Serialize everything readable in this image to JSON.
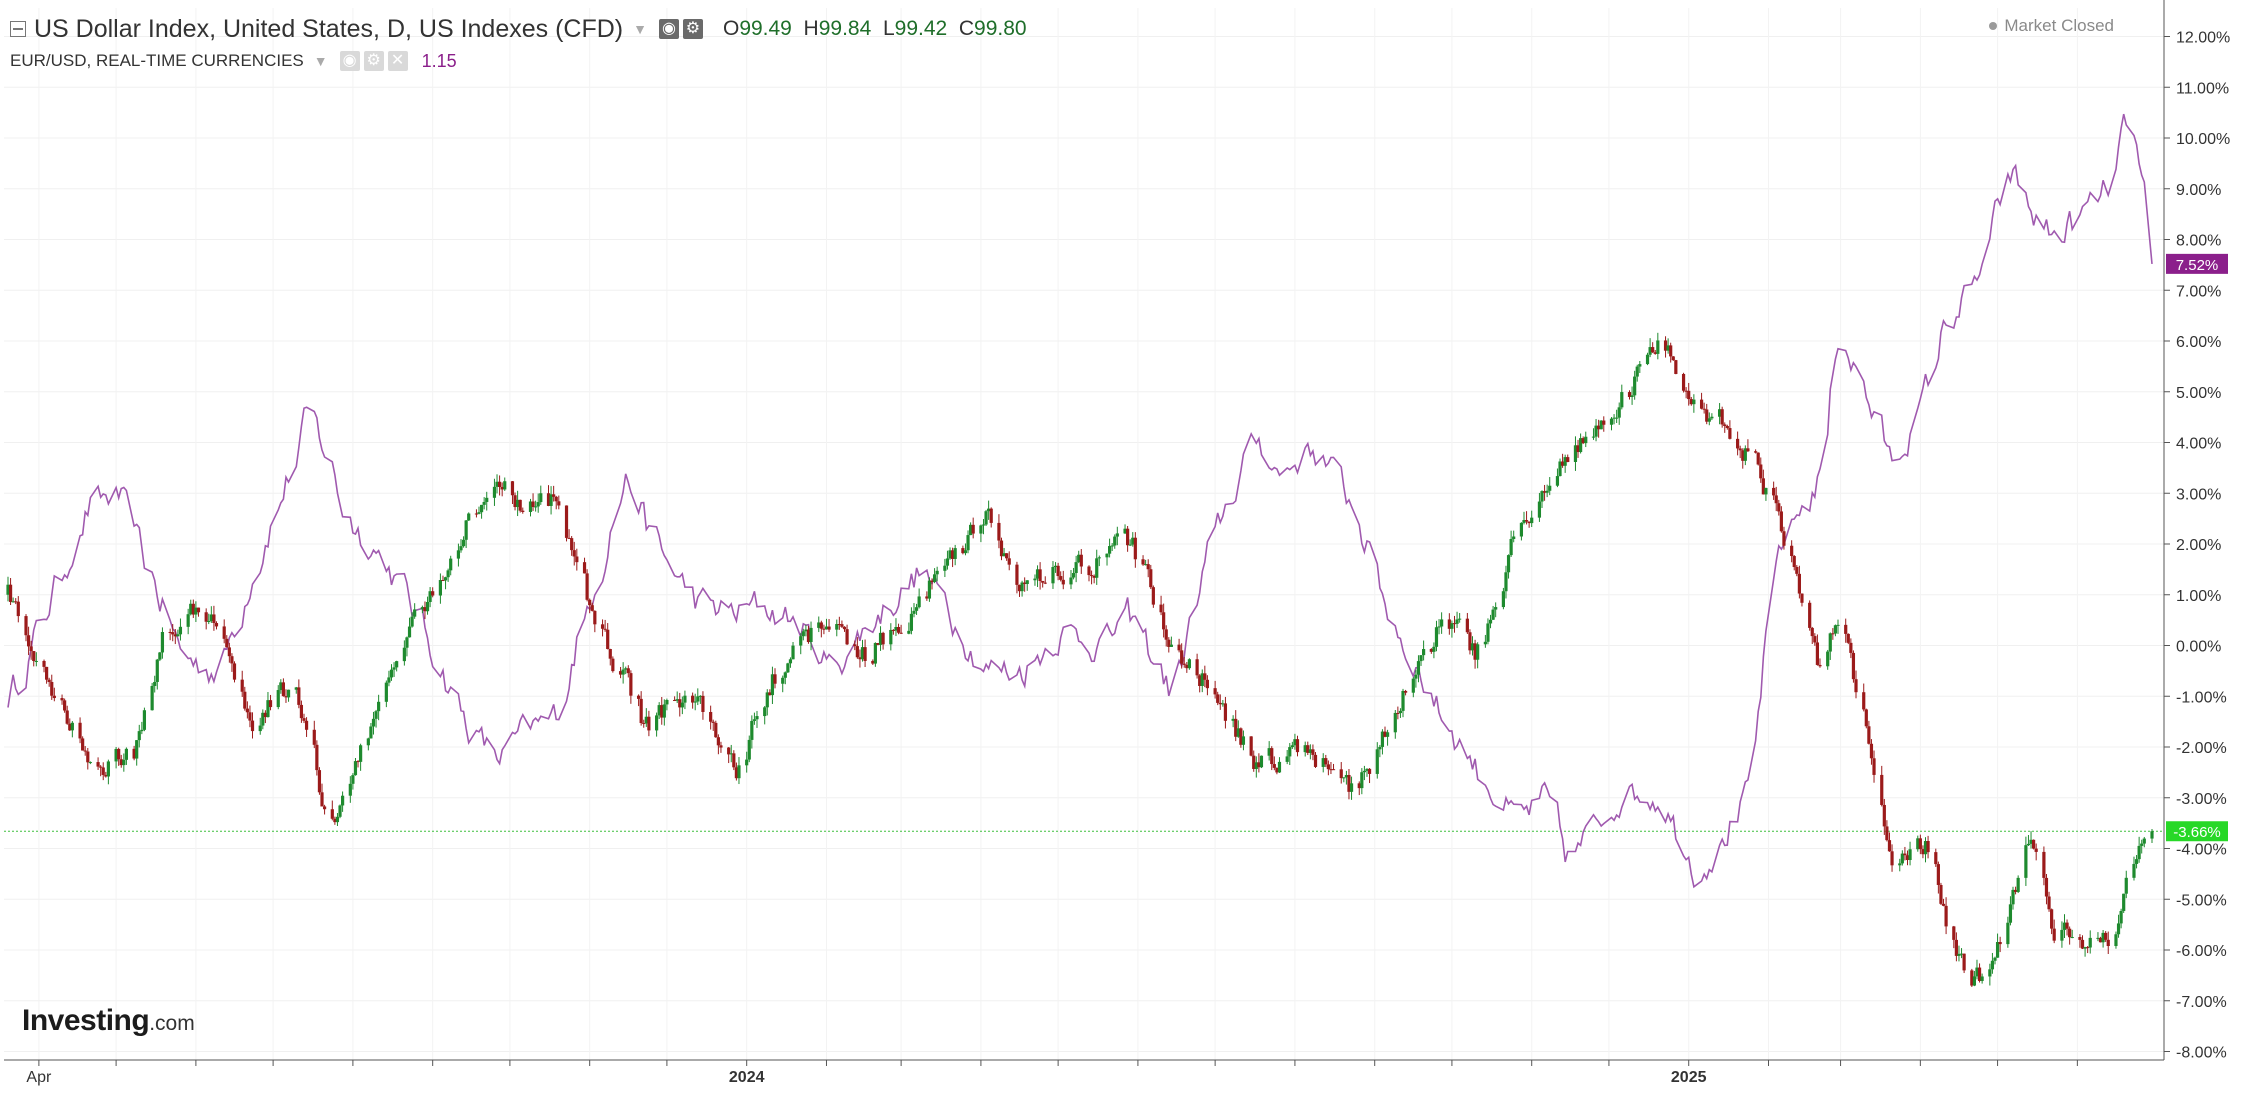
{
  "header": {
    "main_title": "US Dollar Index, United States, D, US Indexes (CFD)",
    "ohlc": {
      "o_key": "O",
      "o_val": "99.49",
      "h_key": "H",
      "h_val": "99.84",
      "l_key": "L",
      "l_val": "99.42",
      "c_key": "C",
      "c_val": "99.80"
    },
    "overlay_title": "EUR/USD, REAL-TIME CURRENCIES",
    "overlay_value": "1.15",
    "market_status": "Market Closed",
    "icons": [
      "collapse-icon",
      "eye-icon",
      "gear-icon",
      "close-icon"
    ]
  },
  "logo": {
    "brand": "Investing",
    "suffix": ".com"
  },
  "colors": {
    "up_candle": "#1e8a2e",
    "down_candle": "#9b1a1a",
    "eurusd_line": "#a05aaf",
    "eurusd_badge": "#8b1f8b",
    "dxy_badge": "#27d827",
    "current_line": "#3fbf3f"
  },
  "chart_data": {
    "type": "line",
    "title": "",
    "xlabel": "",
    "ylabel": "",
    "x_tick_labels": [
      "Apr",
      "2024",
      "2025"
    ],
    "y_tick_labels": [
      "12.00%",
      "11.00%",
      "10.00%",
      "9.00%",
      "8.00%",
      "7.00%",
      "6.00%",
      "5.00%",
      "4.00%",
      "3.00%",
      "2.00%",
      "1.00%",
      "0.00%",
      "-1.00%",
      "-2.00%",
      "-3.00%",
      "-4.00%",
      "-5.00%",
      "-6.00%",
      "-7.00%",
      "-8.00%"
    ],
    "ylim": [
      -8,
      12.5
    ],
    "y_unit": "%",
    "grid": true,
    "x_start": "2023-03-20",
    "x_end": "2025-06-30",
    "series": [
      {
        "name": "US Dollar Index",
        "style": "candlestick",
        "last_value_label": "-3.66%",
        "x": [
          "2023-03-20",
          "2023-04-05",
          "2023-04-25",
          "2023-05-08",
          "2023-05-20",
          "2023-06-05",
          "2023-06-22",
          "2023-07-07",
          "2023-07-14",
          "2023-07-20",
          "2023-07-28",
          "2023-08-10",
          "2023-08-20",
          "2023-08-30",
          "2023-09-12",
          "2023-09-25",
          "2023-10-03",
          "2023-10-18",
          "2023-10-28",
          "2023-11-06",
          "2023-11-14",
          "2023-11-22",
          "2023-12-01",
          "2023-12-12",
          "2023-12-27",
          "2024-01-04",
          "2024-01-18",
          "2024-02-02",
          "2024-02-14",
          "2024-03-08",
          "2024-03-20",
          "2024-04-02",
          "2024-04-16",
          "2024-05-01",
          "2024-05-16",
          "2024-05-28",
          "2024-06-13",
          "2024-06-28",
          "2024-07-16",
          "2024-07-25",
          "2024-08-06",
          "2024-08-22",
          "2024-09-06",
          "2024-09-27",
          "2024-10-10",
          "2024-10-25",
          "2024-11-06",
          "2024-11-14",
          "2024-11-25",
          "2024-12-06",
          "2024-12-20",
          "2025-01-03",
          "2025-01-13",
          "2025-01-23",
          "2025-02-03",
          "2025-02-20",
          "2025-02-27",
          "2025-03-05",
          "2025-03-20",
          "2025-04-02",
          "2025-04-10",
          "2025-04-21",
          "2025-05-05",
          "2025-05-12",
          "2025-05-22",
          "2025-06-02",
          "2025-06-12",
          "2025-06-20",
          "2025-06-30"
        ],
        "y": [
          1.0,
          -1.2,
          -2.4,
          -2.0,
          0.5,
          0.7,
          -1.5,
          -0.8,
          -1.5,
          -3.6,
          -3.1,
          -1.0,
          0.3,
          0.9,
          2.3,
          3.3,
          2.6,
          2.8,
          1.0,
          0.1,
          -0.7,
          -1.7,
          -1.1,
          -1.1,
          -2.6,
          -1.2,
          0.0,
          0.5,
          -0.3,
          1.0,
          1.8,
          2.6,
          1.0,
          1.5,
          1.7,
          2.1,
          0.0,
          -0.8,
          -2.4,
          -2.2,
          -2.0,
          -3.0,
          -1.5,
          0.5,
          -0.2,
          2.4,
          3.2,
          3.7,
          4.2,
          5.0,
          6.0,
          4.5,
          4.5,
          3.8,
          2.5,
          -0.5,
          0.8,
          -0.5,
          -4.6,
          -3.8,
          -5.5,
          -6.8,
          -5.2,
          -3.6,
          -5.6,
          -5.8,
          -5.9,
          -4.5,
          -3.66
        ]
      },
      {
        "name": "EUR/USD",
        "style": "line",
        "last_value_label": "7.52%",
        "x": [
          "2023-03-20",
          "2023-04-05",
          "2023-04-20",
          "2023-05-01",
          "2023-05-12",
          "2023-05-26",
          "2023-06-09",
          "2023-06-22",
          "2023-07-07",
          "2023-07-14",
          "2023-07-20",
          "2023-07-28",
          "2023-08-10",
          "2023-08-20",
          "2023-08-30",
          "2023-09-12",
          "2023-09-25",
          "2023-10-03",
          "2023-10-18",
          "2023-10-28",
          "2023-11-06",
          "2023-11-14",
          "2023-11-22",
          "2023-12-01",
          "2023-12-12",
          "2023-12-27",
          "2024-01-04",
          "2024-01-18",
          "2024-02-02",
          "2024-02-14",
          "2024-03-08",
          "2024-03-20",
          "2024-04-02",
          "2024-04-16",
          "2024-05-01",
          "2024-05-16",
          "2024-05-28",
          "2024-06-13",
          "2024-06-28",
          "2024-07-16",
          "2024-07-25",
          "2024-08-06",
          "2024-08-22",
          "2024-09-06",
          "2024-09-27",
          "2024-10-10",
          "2024-10-25",
          "2024-11-06",
          "2024-11-14",
          "2024-11-25",
          "2024-12-06",
          "2024-12-20",
          "2025-01-03",
          "2025-01-13",
          "2025-01-23",
          "2025-02-03",
          "2025-02-20",
          "2025-02-27",
          "2025-03-05",
          "2025-03-20",
          "2025-04-02",
          "2025-04-10",
          "2025-04-21",
          "2025-05-05",
          "2025-05-12",
          "2025-05-22",
          "2025-06-02",
          "2025-06-12",
          "2025-06-20",
          "2025-06-30"
        ],
        "y": [
          -1.0,
          1.0,
          2.8,
          3.0,
          1.5,
          -0.3,
          -0.5,
          1.5,
          3.5,
          4.7,
          3.8,
          2.5,
          1.8,
          1.0,
          0.0,
          -1.5,
          -2.3,
          -1.8,
          -1.4,
          0.5,
          2.0,
          3.5,
          2.3,
          1.5,
          0.8,
          0.6,
          0.8,
          0.5,
          -0.5,
          0.3,
          1.5,
          0.5,
          -0.5,
          -0.5,
          0.3,
          0.0,
          0.6,
          -1.0,
          2.0,
          4.2,
          3.3,
          4.0,
          2.8,
          0.5,
          -1.5,
          -2.5,
          -3.5,
          -3.0,
          -4.3,
          -3.5,
          -2.8,
          -3.0,
          -4.5,
          -3.8,
          -3.0,
          2.0,
          3.3,
          6.5,
          5.5,
          3.5,
          5.0,
          6.5,
          7.0,
          9.5,
          8.5,
          8.0,
          8.5,
          9.0,
          10.5,
          7.52
        ]
      }
    ]
  }
}
